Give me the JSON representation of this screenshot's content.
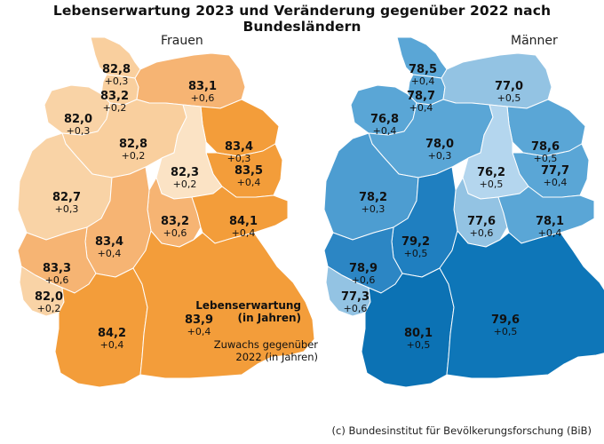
{
  "title": "Lebenserwartung 2023 und Veränderung gegenüber 2022 nach Bundesländern",
  "panels": {
    "women": {
      "label": "Frauen",
      "states": [
        {
          "name": "Schleswig-Holstein",
          "value": "82,8",
          "delta": "+0,3",
          "color": "#f9cf9e"
        },
        {
          "name": "Hamburg",
          "value": "83,2",
          "delta": "+0,2",
          "color": "#f9cf9e"
        },
        {
          "name": "Mecklenburg-Vorpommern",
          "value": "83,1",
          "delta": "+0,6",
          "color": "#f6b473"
        },
        {
          "name": "Bremen",
          "value": "82,0",
          "delta": "+0,3",
          "color": "#f9d3a6"
        },
        {
          "name": "Niedersachsen",
          "value": "82,8",
          "delta": "+0,2",
          "color": "#f9cf9e"
        },
        {
          "name": "Brandenburg",
          "value": "83,4",
          "delta": "+0,3",
          "color": "#f39d3a"
        },
        {
          "name": "Berlin",
          "value": "83,5",
          "delta": "+0,4",
          "color": "#f39d3a"
        },
        {
          "name": "Sachsen-Anhalt",
          "value": "82,3",
          "delta": "+0,2",
          "color": "#fbe3c5"
        },
        {
          "name": "Nordrhein-Westfalen",
          "value": "82,7",
          "delta": "+0,3",
          "color": "#f9d3a6"
        },
        {
          "name": "Thüringen",
          "value": "83,2",
          "delta": "+0,6",
          "color": "#f6b473"
        },
        {
          "name": "Sachsen",
          "value": "84,1",
          "delta": "+0,4",
          "color": "#f39d3a"
        },
        {
          "name": "Hessen",
          "value": "83,4",
          "delta": "+0,4",
          "color": "#f6b473"
        },
        {
          "name": "Rheinland-Pfalz",
          "value": "83,3",
          "delta": "+0,6",
          "color": "#f6b473"
        },
        {
          "name": "Saarland",
          "value": "82,0",
          "delta": "+0,2",
          "color": "#f9d3a6"
        },
        {
          "name": "Baden-Württemberg",
          "value": "84,2",
          "delta": "+0,4",
          "color": "#f39d3a"
        },
        {
          "name": "Bayern",
          "value": "83,9",
          "delta": "+0,4",
          "color": "#f39d3a"
        }
      ]
    },
    "men": {
      "label": "Männer",
      "states": [
        {
          "name": "Schleswig-Holstein",
          "value": "78,5",
          "delta": "+0,4",
          "color": "#5aa6d6"
        },
        {
          "name": "Hamburg",
          "value": "78,7",
          "delta": "+0,4",
          "color": "#5aa6d6"
        },
        {
          "name": "Mecklenburg-Vorpommern",
          "value": "77,0",
          "delta": "+0,5",
          "color": "#93c3e3"
        },
        {
          "name": "Bremen",
          "value": "76,8",
          "delta": "+0,4",
          "color": "#5aa6d6"
        },
        {
          "name": "Niedersachsen",
          "value": "78,0",
          "delta": "+0,3",
          "color": "#5aa6d6"
        },
        {
          "name": "Brandenburg",
          "value": "78,6",
          "delta": "+0,5",
          "color": "#5aa6d6"
        },
        {
          "name": "Berlin",
          "value": "77,7",
          "delta": "+0,4",
          "color": "#5aa6d6"
        },
        {
          "name": "Sachsen-Anhalt",
          "value": "76,2",
          "delta": "+0,5",
          "color": "#b4d6ee"
        },
        {
          "name": "Nordrhein-Westfalen",
          "value": "78,2",
          "delta": "+0,3",
          "color": "#4d9dd1"
        },
        {
          "name": "Thüringen",
          "value": "77,6",
          "delta": "+0,6",
          "color": "#93c3e3"
        },
        {
          "name": "Sachsen",
          "value": "78,1",
          "delta": "+0,4",
          "color": "#5aa6d6"
        },
        {
          "name": "Hessen",
          "value": "79,2",
          "delta": "+0,5",
          "color": "#1f7fc0"
        },
        {
          "name": "Rheinland-Pfalz",
          "value": "78,9",
          "delta": "+0,6",
          "color": "#2c86c4"
        },
        {
          "name": "Saarland",
          "value": "77,3",
          "delta": "+0,6",
          "color": "#93c3e3"
        },
        {
          "name": "Baden-Württemberg",
          "value": "80,1",
          "delta": "+0,5",
          "color": "#0c72b4"
        },
        {
          "name": "Bayern",
          "value": "79,6",
          "delta": "+0,5",
          "color": "#0e76b8"
        }
      ]
    }
  },
  "legend": {
    "line1": "Lebenserwartung",
    "line2": "(in Jahren)",
    "line3": "Zuwachs gegenüber",
    "line4": "2022 (in Jahren)"
  },
  "footer": "(c) Bundesinstitut für Bevölkerungsforschung (BiB)"
}
